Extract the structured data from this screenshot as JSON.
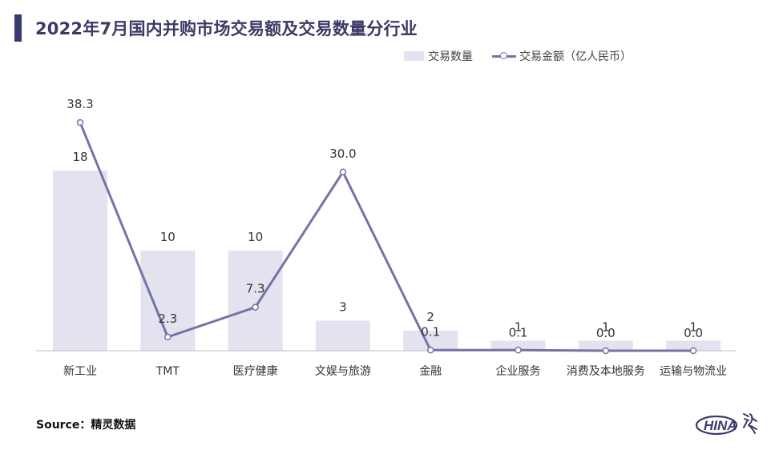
{
  "title": "2022年7月国内并购市场交易额及交易数量分行业",
  "legend": {
    "bar_label": "交易数量",
    "line_label": "交易金额（亿人民币）"
  },
  "source": "Source：精灵数据",
  "logo": {
    "text": "HINA"
  },
  "colors": {
    "bar": "#e3e3ef",
    "line": "#7573a6",
    "title": "#3a3a64",
    "accent": "#3b3a6e"
  },
  "chart_data": {
    "type": "bar",
    "categories": [
      "新工业",
      "TMT",
      "医疗健康",
      "文娱与旅游",
      "金融",
      "企业服务",
      "消费及本地服务",
      "运输与物流业"
    ],
    "series": [
      {
        "name": "交易数量",
        "type": "bar",
        "values": [
          18,
          10,
          10,
          3,
          2,
          1,
          1,
          1
        ],
        "labels": [
          "18",
          "10",
          "10",
          "3",
          "2",
          "1",
          "1",
          "1"
        ]
      },
      {
        "name": "交易金额（亿人民币）",
        "type": "line",
        "values": [
          38.3,
          2.3,
          7.3,
          30.0,
          0.1,
          0.1,
          0.0,
          0.0
        ],
        "labels": [
          "38.3",
          "2.3",
          "7.3",
          "30.0",
          "0.1",
          "0.1",
          "0.0",
          "0.0"
        ]
      }
    ]
  }
}
